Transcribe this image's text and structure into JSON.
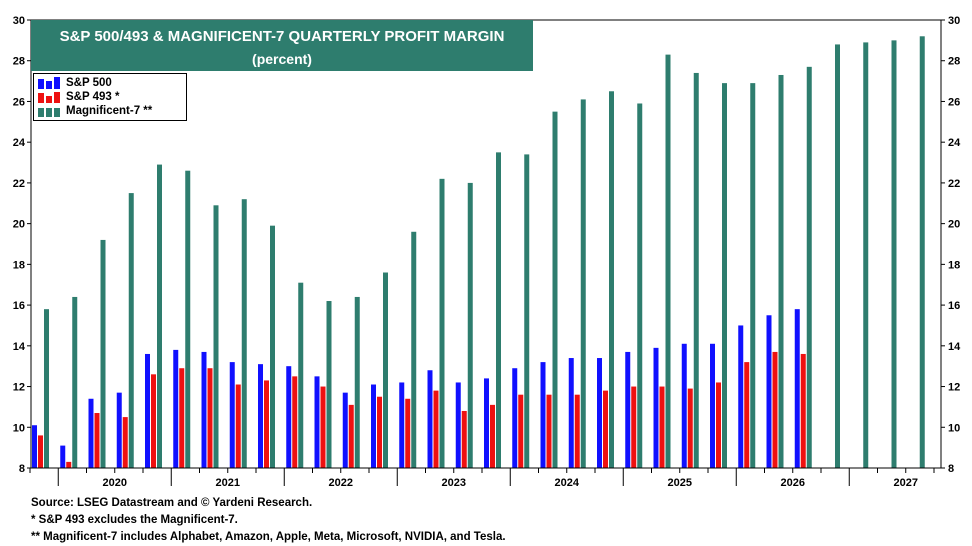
{
  "chart_data": {
    "type": "bar",
    "title": "S&P 500/493 & MAGNIFICENT-7 QUARTERLY PROFIT MARGIN",
    "subtitle": "(percent)",
    "ylim": [
      8,
      30
    ],
    "yticks": [
      8,
      10,
      12,
      14,
      16,
      18,
      20,
      22,
      24,
      26,
      28,
      30
    ],
    "year_labels": [
      "2020",
      "2021",
      "2022",
      "2023",
      "2024",
      "2025",
      "2026",
      "2027"
    ],
    "quarters_start": "2019 Q4",
    "legend": [
      "S&P 500",
      "S&P 493 *",
      "Magnificent-7 **"
    ],
    "legend_position": "top-left",
    "grid": false,
    "colors": {
      "sp500": "#1010ff",
      "sp493": "#ee1111",
      "mag7": "#2e7d6e",
      "title_bg": "#2e7d6e"
    },
    "series": [
      {
        "name": "S&P 500",
        "values": [
          10.1,
          9.1,
          11.4,
          11.7,
          13.6,
          13.8,
          13.7,
          13.2,
          13.1,
          13.0,
          12.5,
          11.7,
          12.1,
          12.2,
          12.8,
          12.2,
          12.4,
          12.9,
          13.2,
          13.4,
          13.4,
          13.7,
          13.9,
          14.1,
          14.1,
          15.0,
          15.5,
          15.8,
          null,
          null,
          null,
          null
        ]
      },
      {
        "name": "S&P 493 *",
        "values": [
          9.6,
          8.3,
          10.7,
          10.5,
          12.6,
          12.9,
          12.9,
          12.1,
          12.3,
          12.5,
          12.0,
          11.1,
          11.5,
          11.4,
          11.8,
          10.8,
          11.1,
          11.6,
          11.6,
          11.6,
          11.8,
          12.0,
          12.0,
          11.9,
          12.2,
          13.2,
          13.7,
          13.6,
          null,
          null,
          null,
          null
        ]
      },
      {
        "name": "Magnificent-7 **",
        "values": [
          15.8,
          16.4,
          19.2,
          21.5,
          22.9,
          22.6,
          20.9,
          21.2,
          19.9,
          17.1,
          16.2,
          16.4,
          17.6,
          19.6,
          22.2,
          22.0,
          23.5,
          23.4,
          25.5,
          26.1,
          26.5,
          25.9,
          28.3,
          27.4,
          26.9,
          26.9,
          27.3,
          27.7,
          28.8,
          28.9,
          29.0,
          29.2
        ]
      }
    ]
  },
  "footer": {
    "source": "Source: LSEG Datastream and © Yardeni Research.",
    "note1": "* S&P 493 excludes the Magnificent-7.",
    "note2": "** Magnificent-7 includes Alphabet, Amazon, Apple, Meta, Microsoft, NVIDIA, and Tesla."
  }
}
